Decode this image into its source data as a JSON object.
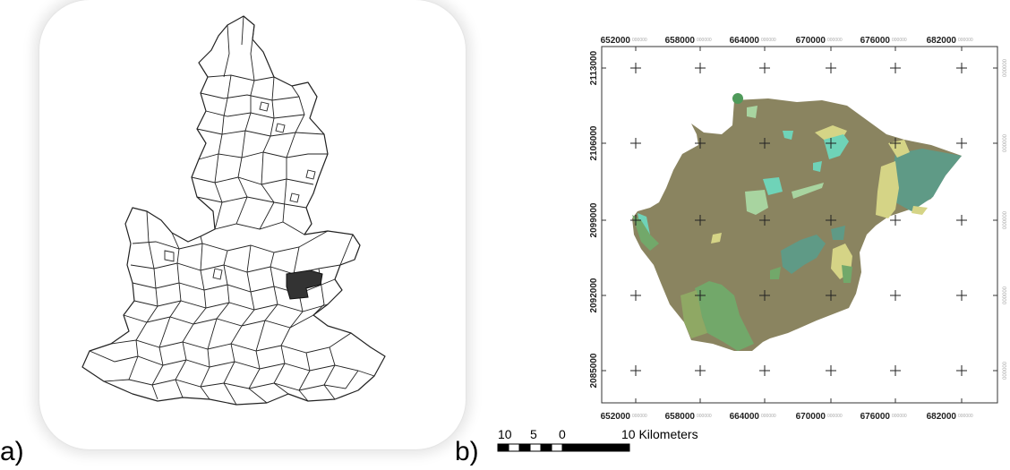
{
  "panel_a": {
    "label": "a)"
  },
  "panel_b": {
    "label": "b)",
    "x_tick_labels": [
      "652000",
      "658000",
      "664000",
      "670000",
      "676000",
      "682000"
    ],
    "y_tick_labels": [
      "2113000",
      "2106000",
      "2099000",
      "2092000",
      "2085000"
    ],
    "tick_suffix": "000000",
    "scale_bar": {
      "labels": [
        "10",
        "5",
        "0",
        "10 Kilometers"
      ]
    },
    "colors": {
      "base": "#8a8460",
      "teal": "#5f9a86",
      "aqua": "#6fd3b8",
      "yellow": "#d5d486",
      "green": "#72a86a",
      "light_green": "#a8d4a0"
    }
  }
}
